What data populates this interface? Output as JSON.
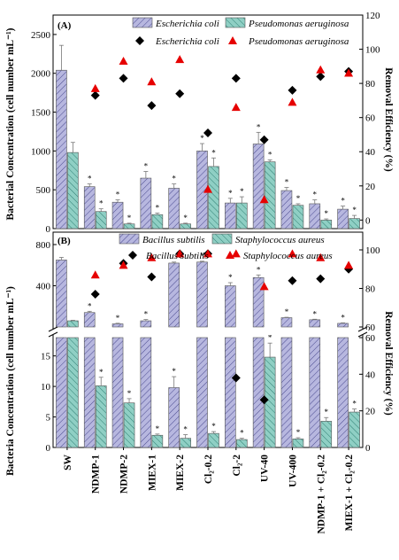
{
  "figure": {
    "y_left_label": "Bacterial Concentration (cell number mL⁻¹)",
    "y_right_label": "Removal Efficiency (%)",
    "y_left_label_bottom": "Bacteria Concentration (cell number mL⁻¹)",
    "categories": [
      "SW",
      "NDMP-1",
      "NDMP-2",
      "MIEX-1",
      "MIEX-2",
      "Cl₂-0.2",
      "Cl₂-2",
      "UV-40",
      "UV-400",
      "NDMP-1 + Cl₂-0.2",
      "MIEX-1 + Cl₂-0.2"
    ],
    "colors": {
      "bar1_fill": "#b7b7df",
      "bar2_fill": "#8fcfc4",
      "diamond": "#000000",
      "triangle": "#e60000"
    }
  },
  "chart_data": [
    {
      "panel": "(A)",
      "type": "bar",
      "categories": [
        "SW",
        "NDMP-1",
        "NDMP-2",
        "MIEX-1",
        "MIEX-2",
        "Cl₂-0.2",
        "Cl₂-2",
        "UV-40",
        "UV-400",
        "NDMP-1 + Cl₂-0.2",
        "MIEX-1 + Cl₂-0.2"
      ],
      "ylim": [
        0,
        2750
      ],
      "yticks": [
        0,
        500,
        1000,
        1500,
        2000,
        2500
      ],
      "y2lim": [
        -5,
        120
      ],
      "y2ticks": [
        0,
        20,
        40,
        60,
        80,
        100,
        120
      ],
      "series": [
        {
          "name": "Escherichia coli",
          "kind": "bar",
          "values": [
            2040,
            540,
            340,
            650,
            520,
            1000,
            330,
            1090,
            490,
            320,
            250
          ],
          "errors": [
            320,
            35,
            30,
            85,
            55,
            95,
            60,
            150,
            40,
            50,
            40
          ],
          "stars": [
            false,
            true,
            true,
            true,
            true,
            true,
            true,
            true,
            true,
            true,
            true
          ]
        },
        {
          "name": "Pseudomonas aeruginosa",
          "kind": "bar",
          "values": [
            980,
            220,
            60,
            180,
            60,
            800,
            330,
            860,
            300,
            110,
            130
          ],
          "errors": [
            130,
            35,
            10,
            20,
            10,
            110,
            80,
            25,
            20,
            15,
            40
          ],
          "stars": [
            false,
            true,
            true,
            true,
            true,
            true,
            true,
            true,
            true,
            true,
            true
          ]
        },
        {
          "name": "Escherichia coli",
          "kind": "scatter",
          "marker": "diamond",
          "values": [
            null,
            73,
            83,
            67,
            74,
            51,
            83,
            47,
            76,
            84,
            87
          ]
        },
        {
          "name": "Pseudomonas aeruginosa",
          "kind": "scatter",
          "marker": "triangle",
          "values": [
            null,
            77,
            93,
            81,
            94,
            18,
            66,
            12,
            69,
            88,
            86
          ]
        }
      ]
    },
    {
      "panel": "(B)",
      "type": "bar",
      "categories": [
        "SW",
        "NDMP-1",
        "NDMP-2",
        "MIEX-1",
        "MIEX-2",
        "Cl₂-0.2",
        "Cl₂-2",
        "UV-40",
        "UV-400",
        "NDMP-1 + Cl₂-0.2",
        "MIEX-1 + Cl₂-0.2"
      ],
      "ylim_lower": [
        0,
        18
      ],
      "yticks_lower": [
        0,
        5,
        10,
        15
      ],
      "ylim_upper": [
        0,
        800
      ],
      "yticks_upper": [
        400,
        800
      ],
      "y2lim_lower": [
        0,
        60
      ],
      "y2ticks_lower": [
        0,
        20,
        40,
        60
      ],
      "y2lim_upper": [
        60,
        100
      ],
      "y2ticks_upper": [
        60,
        80,
        100
      ],
      "series": [
        {
          "name": "Bacillus subtilis",
          "kind": "bar",
          "values": [
            650,
            140,
            30,
            60,
            620,
            630,
            400,
            480,
            90,
            70,
            35
          ],
          "errors": [
            25,
            12,
            6,
            12,
            10,
            8,
            30,
            25,
            4,
            5,
            5
          ],
          "lower_bar_only": [
            false,
            false,
            false,
            false,
            true,
            false,
            false,
            false,
            false,
            false,
            false
          ],
          "lower_values": [
            null,
            null,
            null,
            null,
            9.8,
            null,
            null,
            null,
            null,
            null,
            null
          ],
          "lower_errors": [
            null,
            null,
            null,
            null,
            1.8,
            null,
            null,
            null,
            null,
            null,
            null
          ],
          "stars": [
            false,
            true,
            true,
            true,
            true,
            true,
            true,
            true,
            true,
            true,
            true
          ]
        },
        {
          "name": "Staphylococcus aureus",
          "kind": "bar",
          "values": [
            60,
            10.1,
            7.3,
            2.0,
            1.5,
            2.3,
            1.3,
            14.8,
            1.4,
            4.3,
            5.8
          ],
          "errors": [
            5,
            1.4,
            0.7,
            0.2,
            0.6,
            0.3,
            0.2,
            2.3,
            0.2,
            0.6,
            0.5
          ],
          "stars": [
            false,
            true,
            true,
            true,
            true,
            true,
            true,
            true,
            true,
            true,
            true
          ]
        },
        {
          "name": "Bacillus subtilis",
          "kind": "scatter",
          "marker": "diamond",
          "values": [
            null,
            77,
            93,
            86,
            98,
            98,
            38,
            26,
            84,
            85,
            90
          ]
        },
        {
          "name": "Staphylococcus aureus",
          "kind": "scatter",
          "marker": "triangle",
          "values": [
            null,
            87,
            92,
            96,
            98,
            98,
            98,
            81,
            98,
            96,
            92
          ]
        }
      ]
    }
  ]
}
